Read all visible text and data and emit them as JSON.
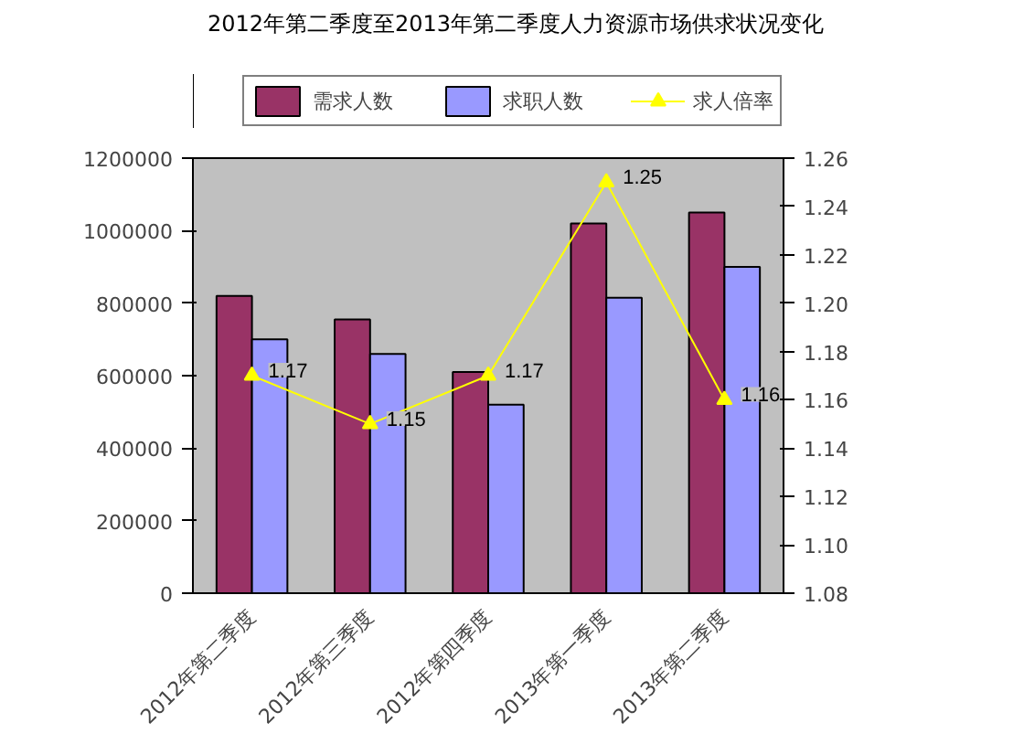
{
  "chart_data": {
    "type": "bar",
    "title": "2012年第二季度至2013年第二季度人力资源市场供求状况变化",
    "categories": [
      "2012年第二季度",
      "2012年第三季度",
      "2012年第四季度",
      "2013年第一季度",
      "2013年第二季度"
    ],
    "series": [
      {
        "name": "需求人数",
        "color": "#993366",
        "values": [
          820000,
          755000,
          610000,
          1020000,
          1050000
        ]
      },
      {
        "name": "求职人数",
        "color": "#9999ff",
        "values": [
          700000,
          660000,
          520000,
          815000,
          900000
        ]
      },
      {
        "name": "求人倍率",
        "type": "line",
        "axis": "y2",
        "color": "#ffff00",
        "marker": "triangle",
        "values": [
          1.17,
          1.15,
          1.17,
          1.25,
          1.16
        ],
        "value_labels": [
          "1.17",
          "1.15",
          "1.17",
          "1.25",
          "1.16"
        ]
      }
    ],
    "ylim": [
      0,
      1200000
    ],
    "yticks": [
      0,
      200000,
      400000,
      600000,
      800000,
      1000000,
      1200000
    ],
    "y2lim": [
      1.08,
      1.26
    ],
    "y2ticks": [
      {
        "value": 1.08,
        "label": "1.08"
      },
      {
        "value": 1.1,
        "label": "1.10"
      },
      {
        "value": 1.12,
        "label": "1.12"
      },
      {
        "value": 1.14,
        "label": "1.14"
      },
      {
        "value": 1.16,
        "label": "1.16"
      },
      {
        "value": 1.18,
        "label": "1.18"
      },
      {
        "value": 1.2,
        "label": "1.20"
      },
      {
        "value": 1.22,
        "label": "1.22"
      },
      {
        "value": 1.24,
        "label": "1.24"
      },
      {
        "value": 1.26,
        "label": "1.26"
      }
    ],
    "grid": false,
    "legend": "top"
  }
}
